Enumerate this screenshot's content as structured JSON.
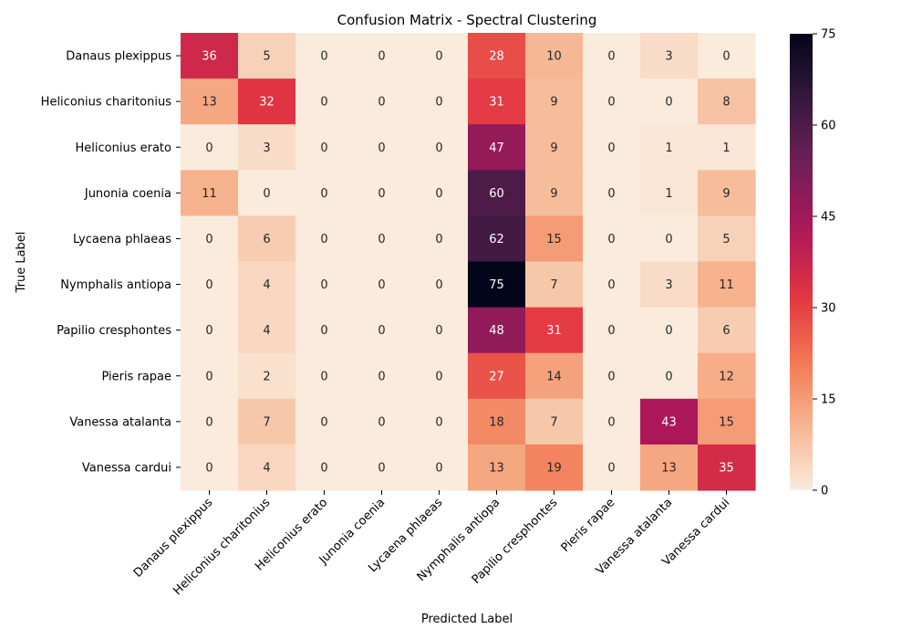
{
  "chart_data": {
    "type": "heatmap",
    "title": "Confusion Matrix - Spectral Clustering",
    "xlabel": "Predicted Label",
    "ylabel": "True Label",
    "x_categories": [
      "Danaus plexippus",
      "Heliconius charitonius",
      "Heliconius erato",
      "Junonia coenia",
      "Lycaena phlaeas",
      "Nymphalis antiopa",
      "Papilio cresphontes",
      "Pieris rapae",
      "Vanessa atalanta",
      "Vanessa cardui"
    ],
    "y_categories": [
      "Danaus plexippus",
      "Heliconius charitonius",
      "Heliconius erato",
      "Junonia coenia",
      "Lycaena phlaeas",
      "Nymphalis antiopa",
      "Papilio cresphontes",
      "Pieris rapae",
      "Vanessa atalanta",
      "Vanessa cardui"
    ],
    "values": [
      [
        36,
        5,
        0,
        0,
        0,
        28,
        10,
        0,
        3,
        0
      ],
      [
        13,
        32,
        0,
        0,
        0,
        31,
        9,
        0,
        0,
        8
      ],
      [
        0,
        3,
        0,
        0,
        0,
        47,
        9,
        0,
        1,
        1
      ],
      [
        11,
        0,
        0,
        0,
        0,
        60,
        9,
        0,
        1,
        9
      ],
      [
        0,
        6,
        0,
        0,
        0,
        62,
        15,
        0,
        0,
        5
      ],
      [
        0,
        4,
        0,
        0,
        0,
        75,
        7,
        0,
        3,
        11
      ],
      [
        0,
        4,
        0,
        0,
        0,
        48,
        31,
        0,
        0,
        6
      ],
      [
        0,
        2,
        0,
        0,
        0,
        27,
        14,
        0,
        0,
        12
      ],
      [
        0,
        7,
        0,
        0,
        0,
        18,
        7,
        0,
        43,
        15
      ],
      [
        0,
        4,
        0,
        0,
        0,
        13,
        19,
        0,
        13,
        35
      ]
    ],
    "colorbar": {
      "range": [
        0,
        75
      ],
      "ticks": [
        0,
        15,
        30,
        45,
        60,
        75
      ]
    },
    "colormap": [
      "#faebdd",
      "#f6b48f",
      "#f37651",
      "#e13342",
      "#ad1759",
      "#701f57",
      "#35193e",
      "#03051a"
    ],
    "grid": false,
    "legend": "colorbar-right"
  }
}
